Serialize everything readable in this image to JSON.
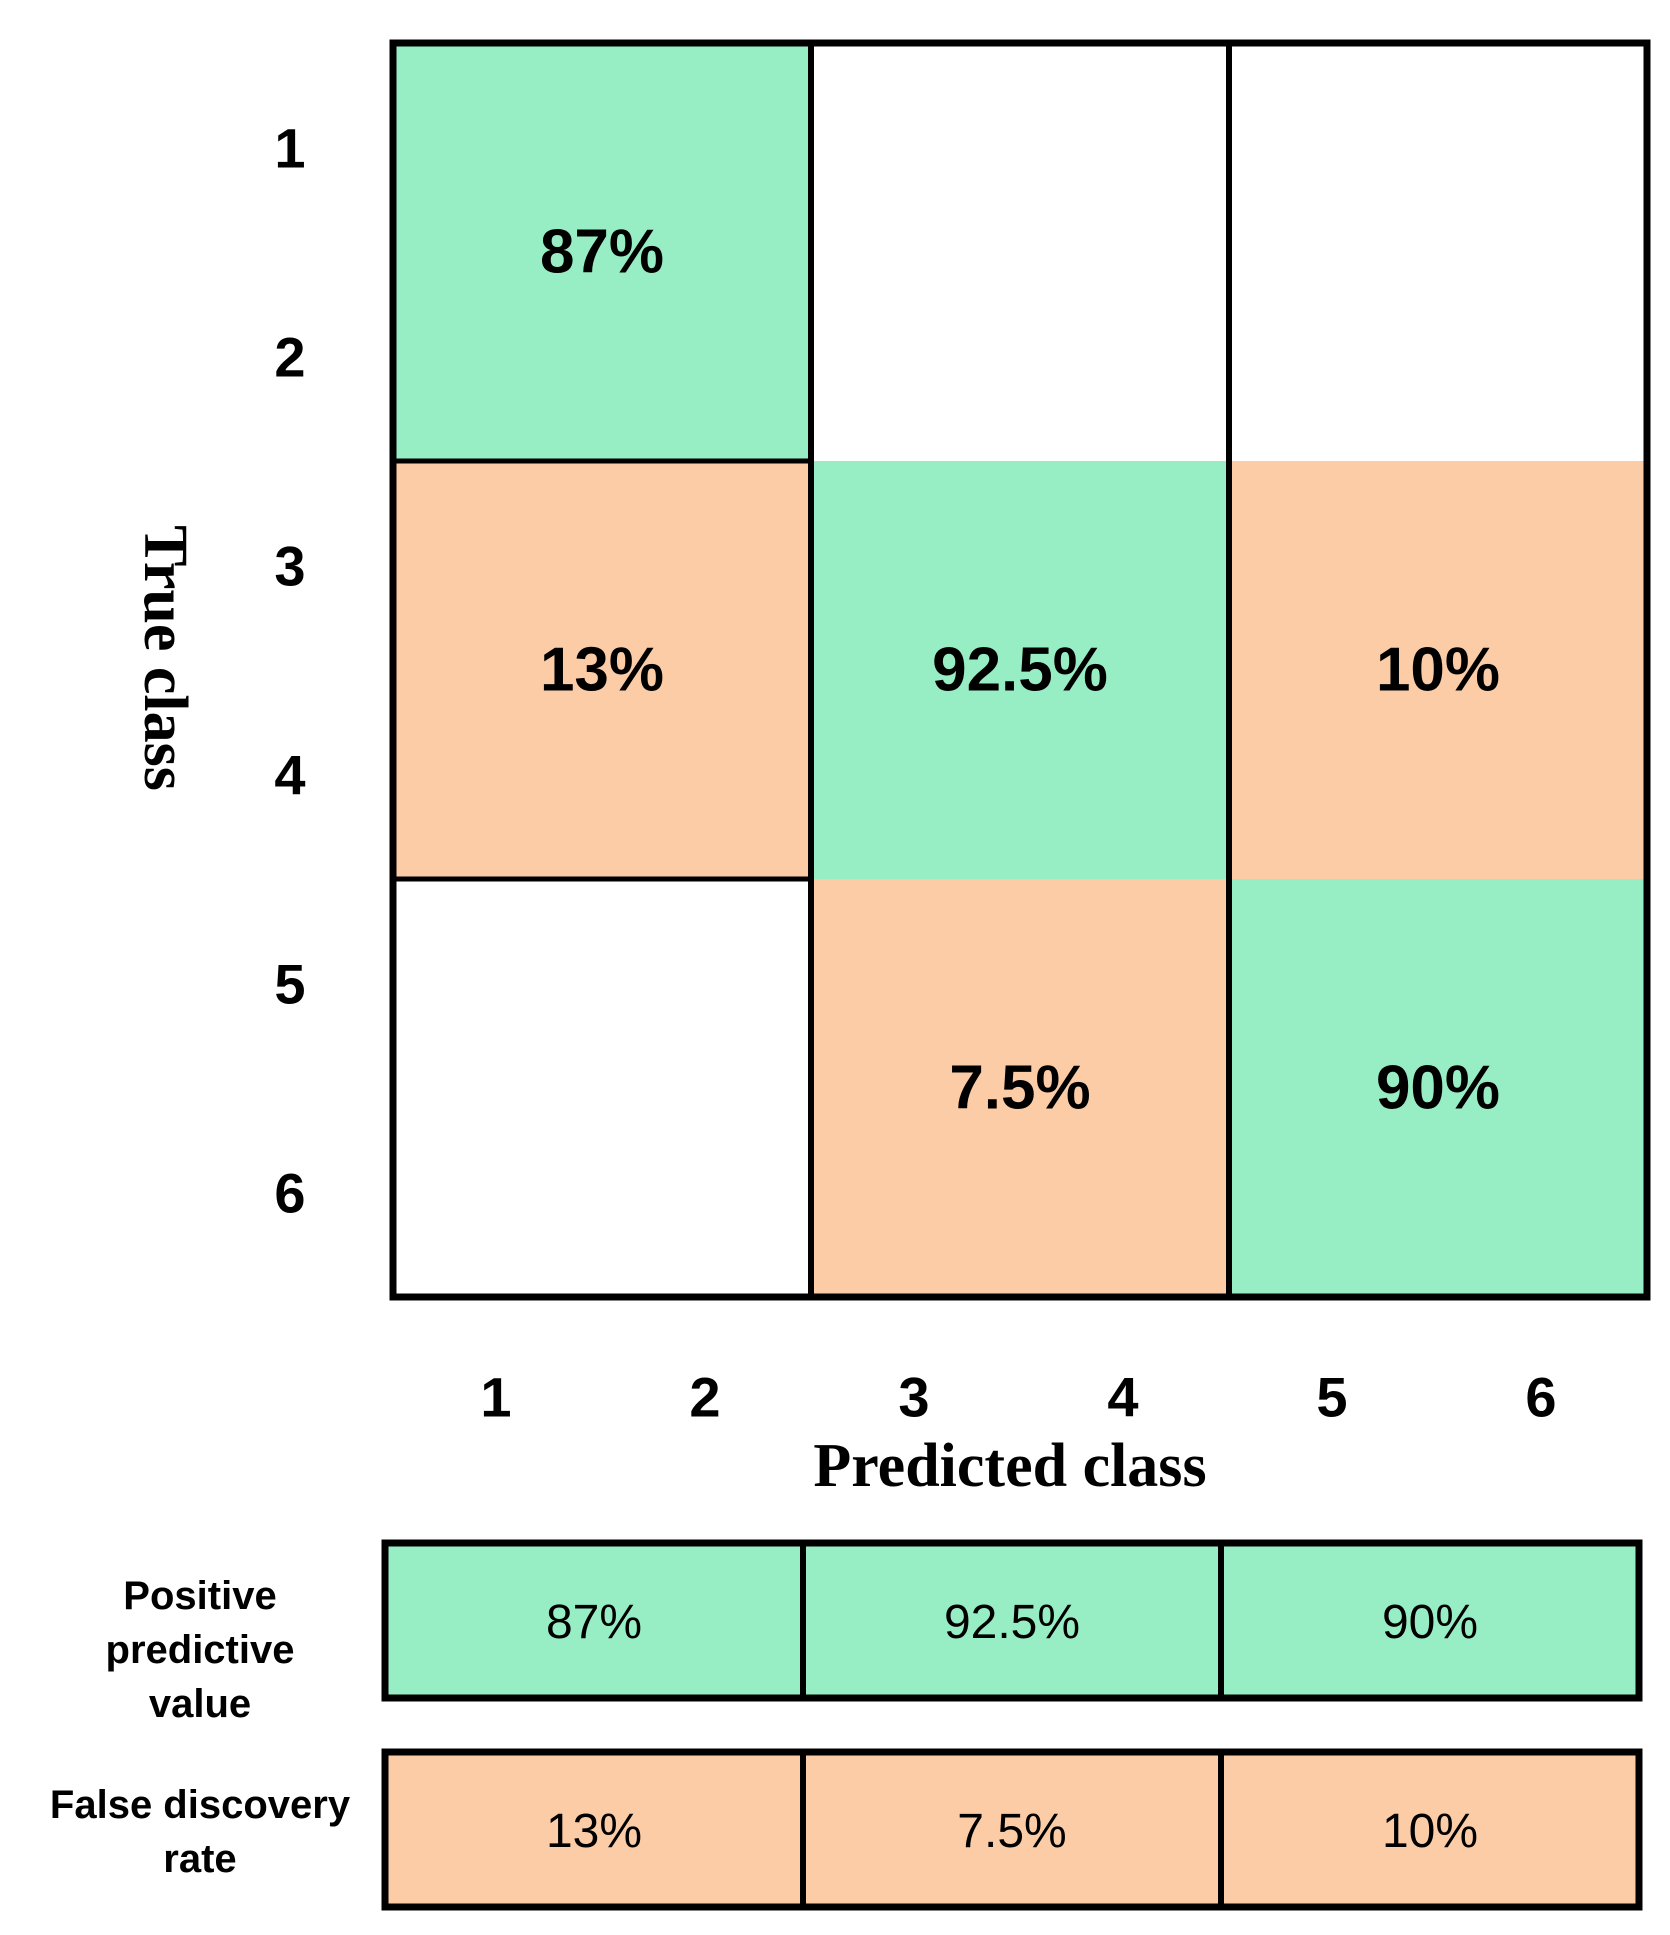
{
  "colors": {
    "correct": "#98EEC4",
    "error": "#FCCCA6",
    "empty": "#FFFFFF",
    "border": "#000000"
  },
  "chart_data": {
    "type": "heatmap",
    "title": "",
    "xlabel": "Predicted class",
    "ylabel": "True class",
    "x_tick_labels": [
      "1",
      "2",
      "3",
      "4",
      "5",
      "6"
    ],
    "y_tick_labels": [
      "1",
      "2",
      "3",
      "4",
      "5",
      "6"
    ],
    "matrix_blocks": [
      [
        {
          "label": "87%",
          "value": 87,
          "kind": "correct"
        },
        {
          "label": "",
          "value": null,
          "kind": "empty"
        },
        {
          "label": "",
          "value": null,
          "kind": "empty"
        }
      ],
      [
        {
          "label": "13%",
          "value": 13,
          "kind": "error"
        },
        {
          "label": "92.5%",
          "value": 92.5,
          "kind": "correct"
        },
        {
          "label": "10%",
          "value": 10,
          "kind": "error"
        }
      ],
      [
        {
          "label": "",
          "value": null,
          "kind": "empty"
        },
        {
          "label": "7.5%",
          "value": 7.5,
          "kind": "error"
        },
        {
          "label": "90%",
          "value": 90,
          "kind": "correct"
        }
      ]
    ],
    "summary_rows": [
      {
        "label_lines": [
          "Positive",
          "predictive",
          "value"
        ],
        "kind": "correct",
        "values": [
          "87%",
          "92.5%",
          "90%"
        ]
      },
      {
        "label_lines": [
          "False discovery",
          "rate"
        ],
        "kind": "error",
        "values": [
          "13%",
          "7.5%",
          "10%"
        ]
      }
    ]
  }
}
